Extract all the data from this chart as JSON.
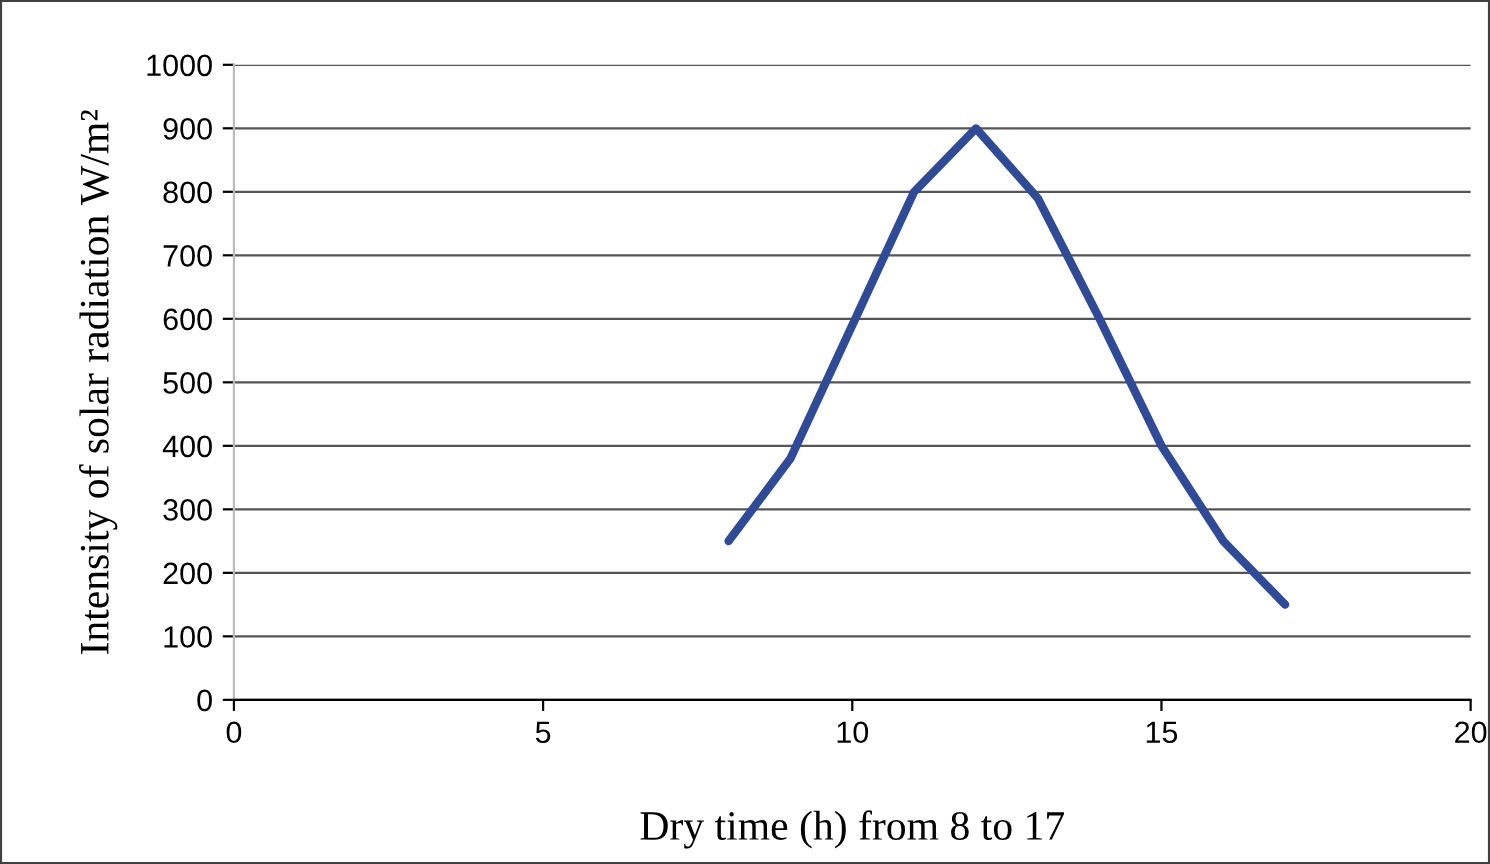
{
  "chart_data": {
    "type": "line",
    "xlabel": "Dry time (h) from 8 to 17",
    "ylabel": "Intensity of solar radiation W/m²",
    "x": [
      8,
      9,
      10,
      11,
      12,
      13,
      14,
      15,
      16,
      17
    ],
    "series": [
      {
        "color": "#2f4b98",
        "values": [
          250,
          380,
          590,
          800,
          900,
          790,
          600,
          400,
          250,
          150
        ]
      }
    ],
    "xlim": [
      0,
      20
    ],
    "xticks": [
      0,
      5,
      10,
      15,
      20
    ],
    "ylim": [
      0,
      1000
    ],
    "yticks": [
      0,
      100,
      200,
      300,
      400,
      500,
      600,
      700,
      800,
      900,
      1000
    ],
    "grid": "y",
    "marker": "none",
    "line_style": "solid",
    "legend": false
  }
}
